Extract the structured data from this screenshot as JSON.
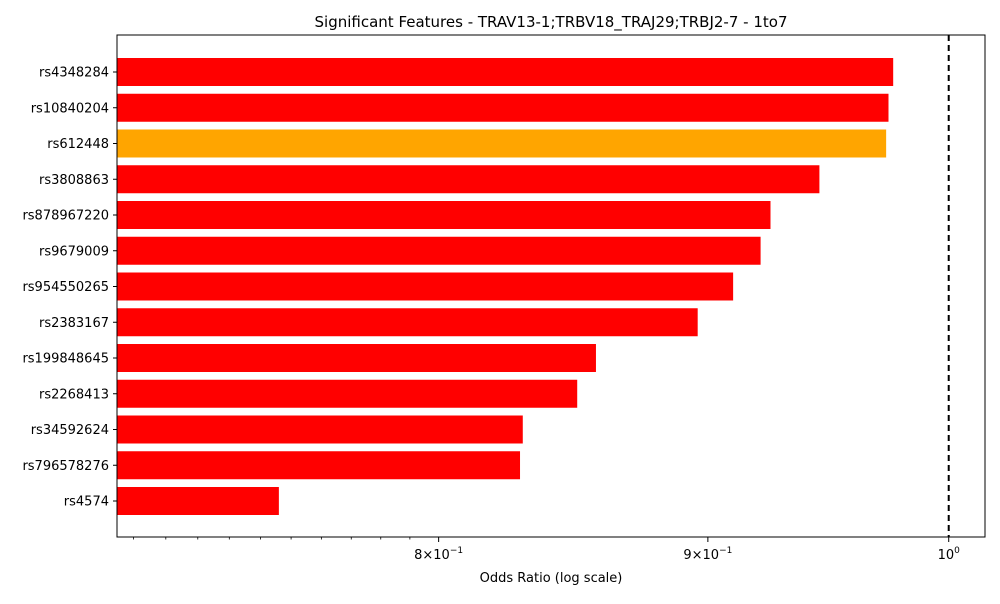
{
  "chart_data": {
    "type": "bar",
    "orientation": "horizontal",
    "title": "Significant Features - TRAV13-1;TRBV18_TRAJ29;TRBJ2-7 - 1to7",
    "xlabel": "Odds Ratio (log scale)",
    "ylabel": "",
    "xscale": "log",
    "xlim": [
      0.695,
      1.016
    ],
    "reference_line": {
      "x": 1.0,
      "style": "dashed",
      "color": "#000000"
    },
    "x_ticks": [
      {
        "value": 0.8,
        "base": "8",
        "exp": "−1",
        "label": "8×10⁻¹"
      },
      {
        "value": 0.9,
        "base": "9",
        "exp": "−1",
        "label": "9×10⁻¹"
      },
      {
        "value": 1.0,
        "base": "",
        "exp": "0",
        "label": "10⁰"
      }
    ],
    "categories": [
      "rs4348284",
      "rs10840204",
      "rs612448",
      "rs3808863",
      "rs878967220",
      "rs9679009",
      "rs954550265",
      "rs2383167",
      "rs199848645",
      "rs2268413",
      "rs34592624",
      "rs796578276",
      "rs4574"
    ],
    "values": [
      0.976,
      0.974,
      0.973,
      0.945,
      0.925,
      0.921,
      0.91,
      0.896,
      0.857,
      0.85,
      0.83,
      0.829,
      0.746
    ],
    "colors": [
      "#ff0000",
      "#ff0000",
      "#ffa500",
      "#ff0000",
      "#ff0000",
      "#ff0000",
      "#ff0000",
      "#ff0000",
      "#ff0000",
      "#ff0000",
      "#ff0000",
      "#ff0000",
      "#ff0000"
    ],
    "grid": false,
    "legend": "none"
  }
}
